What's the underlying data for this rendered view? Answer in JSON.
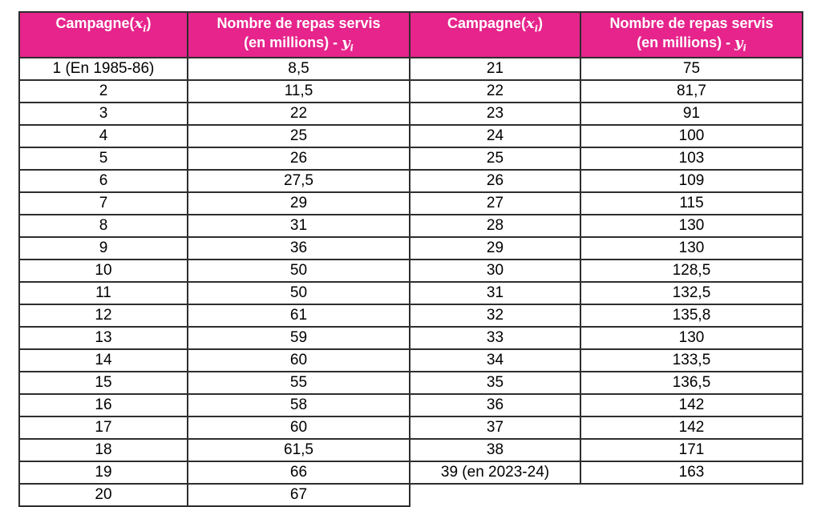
{
  "colors": {
    "header_bg": "#E6248C",
    "header_text": "#FFFFFF",
    "border": "#2E2E2E"
  },
  "headers": {
    "campagne_prefix": "Campagne(",
    "campagne_suffix": ")",
    "x_symbol": "x",
    "y_symbol": "y",
    "sub_i": "i",
    "repas_line1": "Nombre de repas servis",
    "repas_line2_prefix": "(en millions) - "
  },
  "table": {
    "rows": [
      {
        "c1": "1 (En 1985-86)",
        "v1": "8,5",
        "c2": "21",
        "v2": "75"
      },
      {
        "c1": "2",
        "v1": "11,5",
        "c2": "22",
        "v2": "81,7"
      },
      {
        "c1": "3",
        "v1": "22",
        "c2": "23",
        "v2": "91"
      },
      {
        "c1": "4",
        "v1": "25",
        "c2": "24",
        "v2": "100"
      },
      {
        "c1": "5",
        "v1": "26",
        "c2": "25",
        "v2": "103"
      },
      {
        "c1": "6",
        "v1": "27,5",
        "c2": "26",
        "v2": "109"
      },
      {
        "c1": "7",
        "v1": "29",
        "c2": "27",
        "v2": "115"
      },
      {
        "c1": "8",
        "v1": "31",
        "c2": "28",
        "v2": "130"
      },
      {
        "c1": "9",
        "v1": "36",
        "c2": "29",
        "v2": "130"
      },
      {
        "c1": "10",
        "v1": "50",
        "c2": "30",
        "v2": "128,5"
      },
      {
        "c1": "11",
        "v1": "50",
        "c2": "31",
        "v2": "132,5"
      },
      {
        "c1": "12",
        "v1": "61",
        "c2": "32",
        "v2": "135,8"
      },
      {
        "c1": "13",
        "v1": "59",
        "c2": "33",
        "v2": "130"
      },
      {
        "c1": "14",
        "v1": "60",
        "c2": "34",
        "v2": "133,5"
      },
      {
        "c1": "15",
        "v1": "55",
        "c2": "35",
        "v2": "136,5"
      },
      {
        "c1": "16",
        "v1": "58",
        "c2": "36",
        "v2": "142"
      },
      {
        "c1": "17",
        "v1": "60",
        "c2": "37",
        "v2": "142"
      },
      {
        "c1": "18",
        "v1": "61,5",
        "c2": "38",
        "v2": "171"
      },
      {
        "c1": "19",
        "v1": "66",
        "c2": "39 (en 2023-24)",
        "v2": "163"
      },
      {
        "c1": "20",
        "v1": "67",
        "c2": null,
        "v2": null
      }
    ]
  }
}
